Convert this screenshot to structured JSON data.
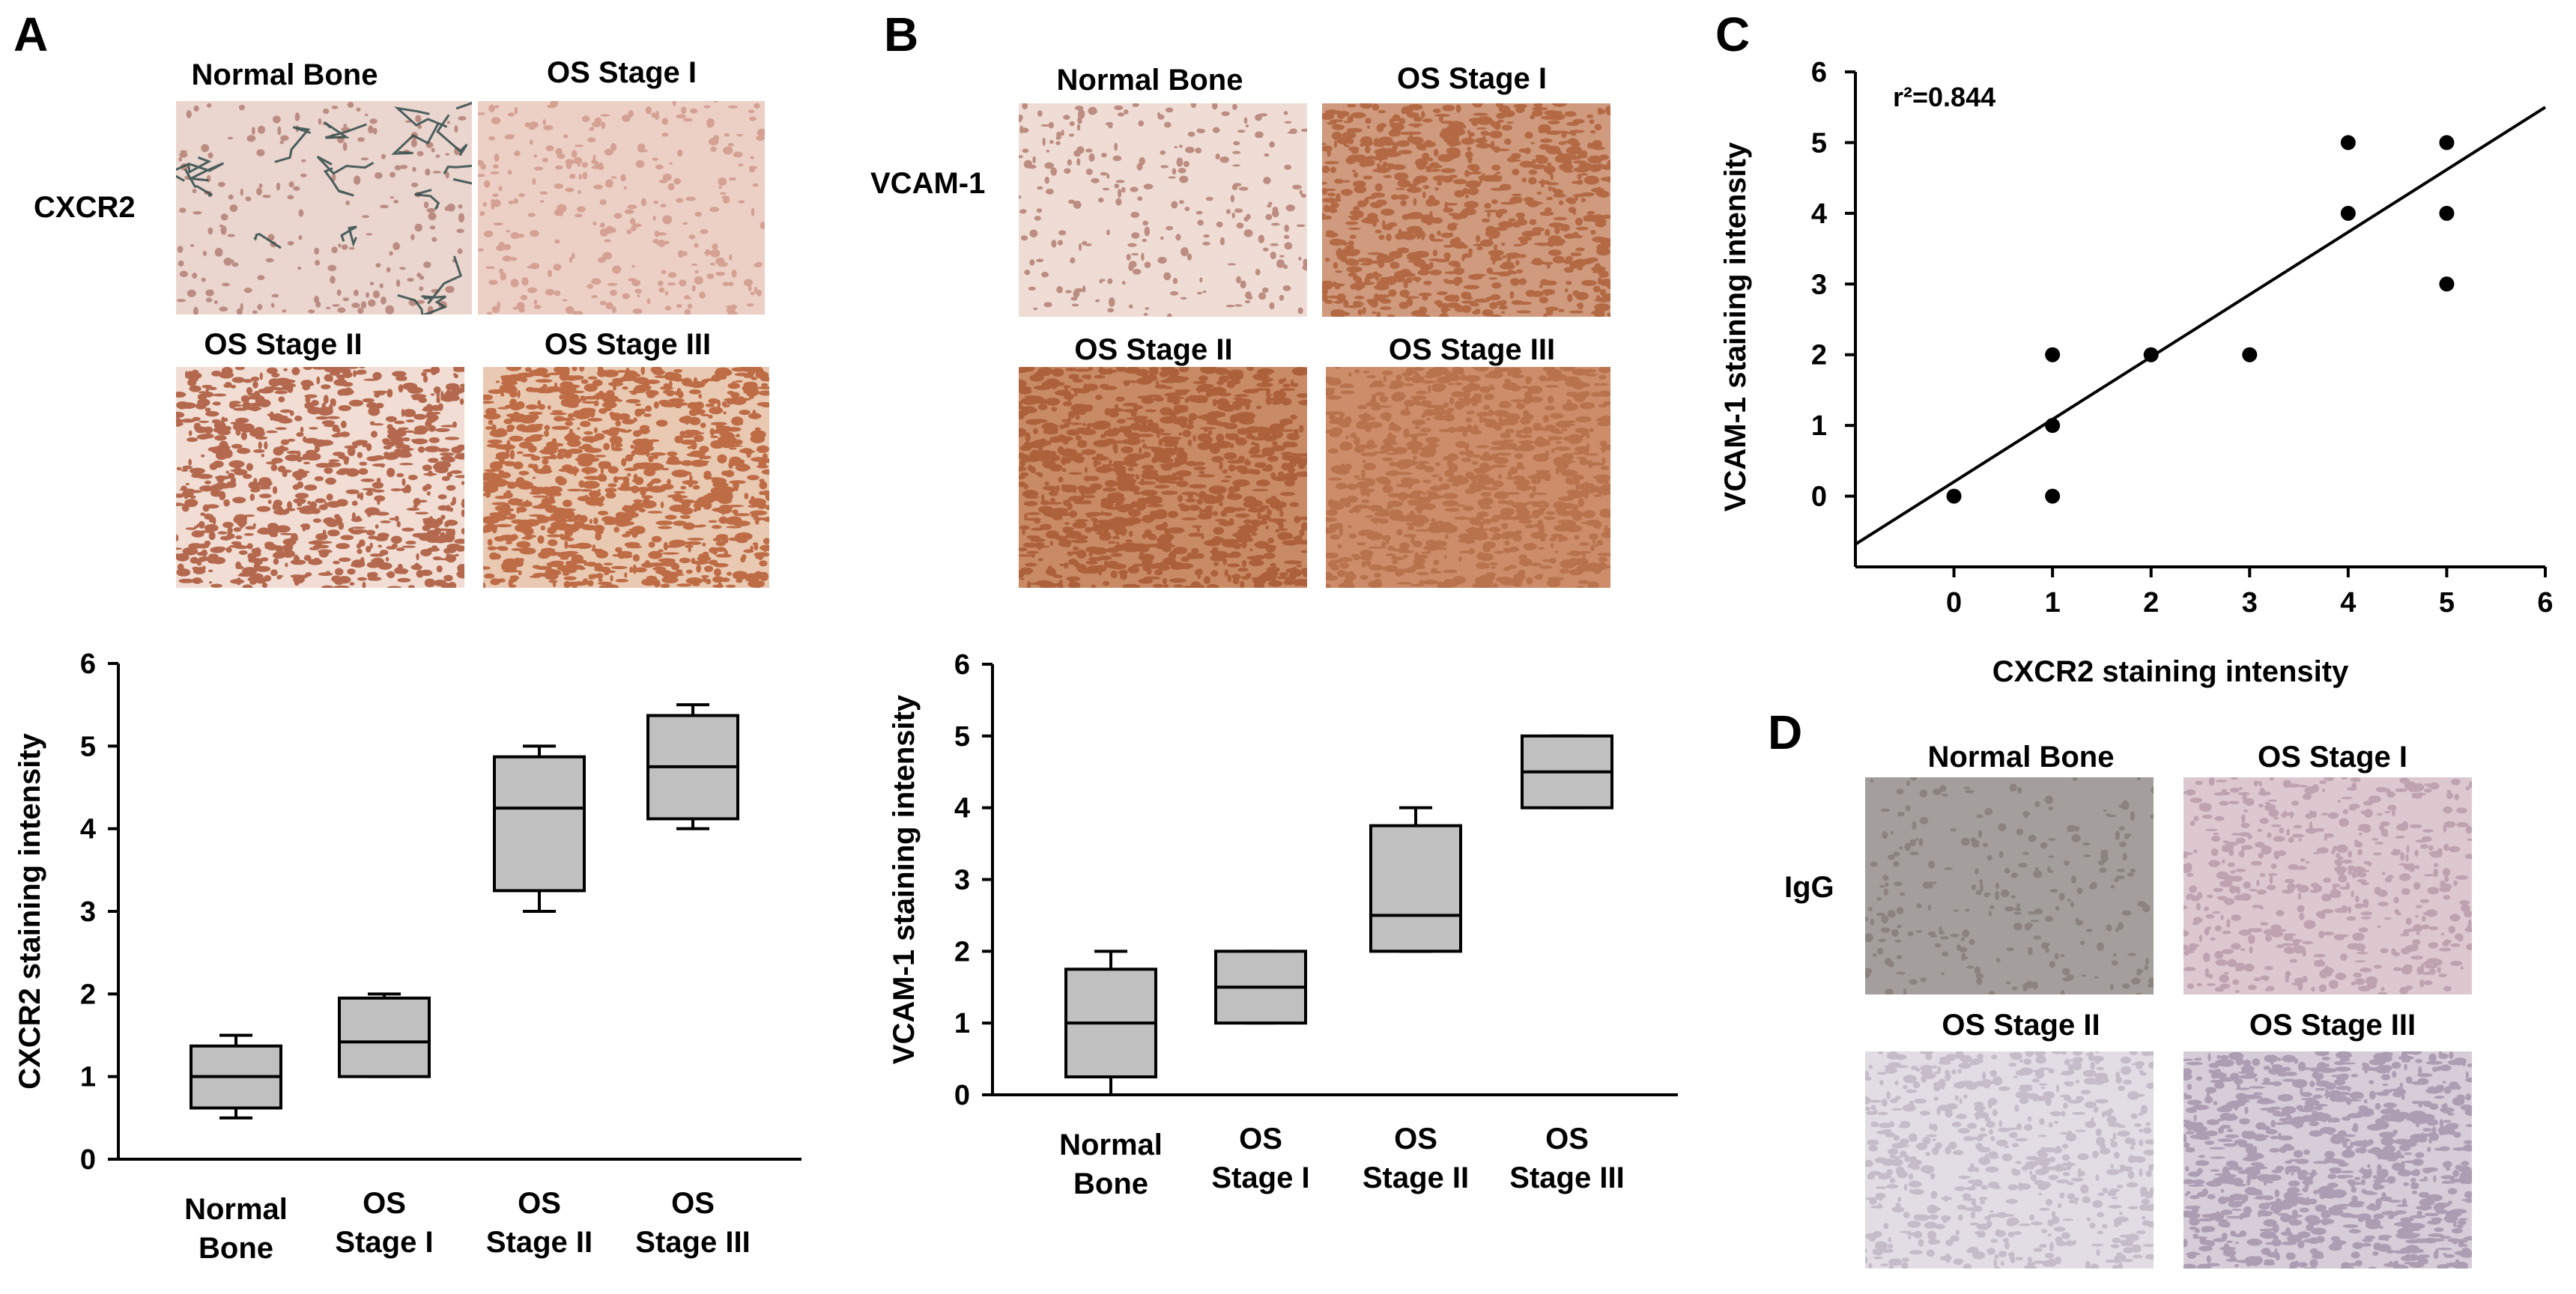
{
  "panels": {
    "A": {
      "letter": "A",
      "row_label": "CXCR2",
      "images": [
        {
          "label": "Normal Bone",
          "base": "#ebd5cf",
          "stain": "#7a2a18",
          "density": 0.15,
          "fibers": "#2f4a49"
        },
        {
          "label": "OS Stage I",
          "base": "#ecd0c6",
          "stain": "#b76a58",
          "density": 0.25,
          "fibers": ""
        },
        {
          "label": "OS Stage II",
          "base": "#f1ddd3",
          "stain": "#9b3a1a",
          "density": 0.8,
          "fibers": ""
        },
        {
          "label": "OS Stage III",
          "base": "#e9c9b2",
          "stain": "#b3552b",
          "density": 1.0,
          "fibers": ""
        }
      ]
    },
    "B": {
      "letter": "B",
      "row_label": "VCAM-1",
      "images": [
        {
          "label": "Normal Bone",
          "base": "#efddd5",
          "stain": "#7b2614",
          "density": 0.2,
          "fibers": ""
        },
        {
          "label": "OS Stage I",
          "base": "#cf9a7e",
          "stain": "#a8542d",
          "density": 0.8,
          "fibers": ""
        },
        {
          "label": "OS Stage II",
          "base": "#c98a66",
          "stain": "#a5562f",
          "density": 1.0,
          "fibers": ""
        },
        {
          "label": "OS Stage III",
          "base": "#cd8d6a",
          "stain": "#b26a45",
          "density": 0.9,
          "fibers": ""
        }
      ]
    },
    "C": {
      "letter": "C"
    },
    "D": {
      "letter": "D",
      "row_label": "IgG",
      "images": [
        {
          "label": "Normal Bone",
          "base": "#a49f9c",
          "stain": "#6d5f58",
          "density": 0.2,
          "fibers": ""
        },
        {
          "label": "OS Stage I",
          "base": "#ddc8d0",
          "stain": "#a98596",
          "density": 0.5,
          "fibers": ""
        },
        {
          "label": "OS Stage II",
          "base": "#e2dce4",
          "stain": "#b3a7b8",
          "density": 0.6,
          "fibers": ""
        },
        {
          "label": "OS Stage III",
          "base": "#d7cdd9",
          "stain": "#9f8ea7",
          "density": 0.9,
          "fibers": ""
        }
      ]
    }
  },
  "chart_data": [
    {
      "panel": "A",
      "type": "box",
      "categories": [
        "Normal Bone",
        "OS Stage I",
        "OS Stage II",
        "OS Stage III"
      ],
      "category_lines": [
        [
          "Normal",
          "Bone"
        ],
        [
          "OS",
          "Stage I"
        ],
        [
          "OS",
          "Stage II"
        ],
        [
          "OS",
          "Stage III"
        ]
      ],
      "boxes": [
        {
          "whisker_low": 0.5,
          "q1": 0.62,
          "median": 1.0,
          "q3": 1.37,
          "whisker_high": 1.5
        },
        {
          "whisker_low": 1.0,
          "q1": 1.0,
          "median": 1.42,
          "q3": 1.95,
          "whisker_high": 2.0
        },
        {
          "whisker_low": 3.0,
          "q1": 3.25,
          "median": 4.25,
          "q3": 4.87,
          "whisker_high": 5.0
        },
        {
          "whisker_low": 4.0,
          "q1": 4.12,
          "median": 4.75,
          "q3": 5.37,
          "whisker_high": 5.5
        }
      ],
      "ylabel": "CXCR2 staining intensity",
      "ylim": [
        0,
        6
      ],
      "yticks": [
        "0",
        "1",
        "2",
        "3",
        "4",
        "5",
        "6"
      ],
      "box_fill": "#c0c0c0"
    },
    {
      "panel": "B",
      "type": "box",
      "categories": [
        "Normal Bone",
        "OS Stage I",
        "OS Stage II",
        "OS Stage III"
      ],
      "category_lines": [
        [
          "Normal",
          "Bone"
        ],
        [
          "OS",
          "Stage I"
        ],
        [
          "OS",
          "Stage II"
        ],
        [
          "OS",
          "Stage III"
        ]
      ],
      "boxes": [
        {
          "whisker_low": 0.0,
          "q1": 0.25,
          "median": 1.0,
          "q3": 1.75,
          "whisker_high": 2.0
        },
        {
          "whisker_low": 1.0,
          "q1": 1.0,
          "median": 1.5,
          "q3": 2.0,
          "whisker_high": 2.0
        },
        {
          "whisker_low": 2.0,
          "q1": 2.0,
          "median": 2.5,
          "q3": 3.75,
          "whisker_high": 4.0
        },
        {
          "whisker_low": 4.0,
          "q1": 4.0,
          "median": 4.5,
          "q3": 5.0,
          "whisker_high": 5.0
        }
      ],
      "ylabel": "VCAM-1 staining intensity",
      "ylim": [
        0,
        6
      ],
      "yticks": [
        "0",
        "1",
        "2",
        "3",
        "4",
        "5",
        "6"
      ],
      "box_fill": "#c0c0c0"
    },
    {
      "panel": "C",
      "type": "scatter",
      "points": [
        {
          "x": 0,
          "y": 0
        },
        {
          "x": 1,
          "y": 0
        },
        {
          "x": 1,
          "y": 1
        },
        {
          "x": 1,
          "y": 2
        },
        {
          "x": 2,
          "y": 2
        },
        {
          "x": 3,
          "y": 2
        },
        {
          "x": 4,
          "y": 4
        },
        {
          "x": 4,
          "y": 5
        },
        {
          "x": 5,
          "y": 3
        },
        {
          "x": 5,
          "y": 4
        },
        {
          "x": 5,
          "y": 5
        }
      ],
      "fit_line": {
        "x0": -1.0,
        "y0": -0.68,
        "x1": 6.0,
        "y1": 5.5
      },
      "annotation": "r²=0.844",
      "xlabel": "CXCR2 staining intensity",
      "ylabel": "VCAM-1 staining intensity",
      "xlim": [
        -1,
        6
      ],
      "ylim": [
        -1,
        6
      ],
      "xticks": [
        "0",
        "1",
        "2",
        "3",
        "4",
        "5",
        "6"
      ],
      "yticks": [
        "0",
        "1",
        "2",
        "3",
        "4",
        "5",
        "6"
      ]
    }
  ]
}
